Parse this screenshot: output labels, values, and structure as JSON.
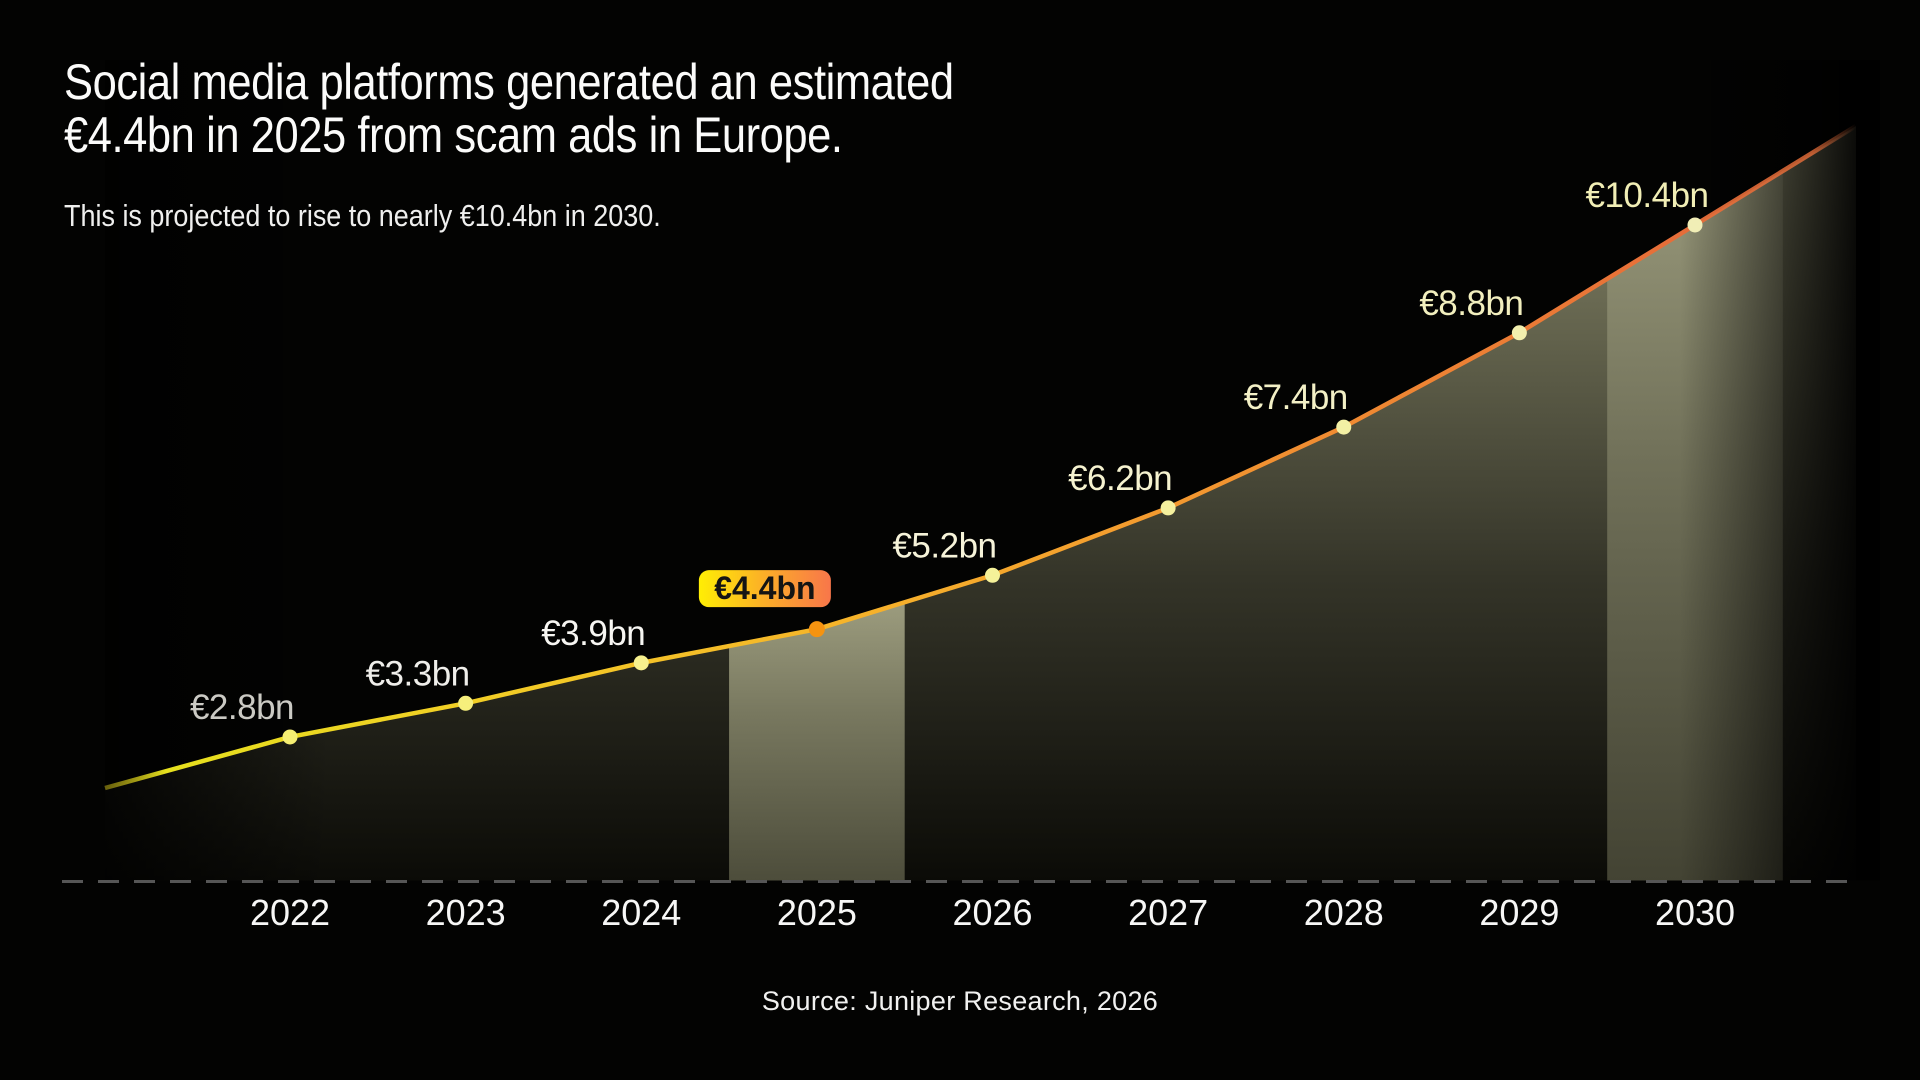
{
  "header": {
    "title_line1": "Social media platforms generated an estimated",
    "title_line2": "€4.4bn in 2025 from scam ads in Europe.",
    "subtitle": "This is projected to rise to nearly €10.4bn in 2030."
  },
  "footer": {
    "source": "Source: Juniper Research, 2026"
  },
  "chart_data": {
    "type": "area",
    "title": "Social media platforms generated an estimated €4.4bn in 2025 from scam ads in Europe.",
    "subtitle": "This is projected to rise to nearly €10.4bn in 2030.",
    "source": "Source: Juniper Research, 2026",
    "categories": [
      "2022",
      "2023",
      "2024",
      "2025",
      "2026",
      "2027",
      "2028",
      "2029",
      "2030"
    ],
    "values": [
      2.8,
      3.3,
      3.9,
      4.4,
      5.2,
      6.2,
      7.4,
      8.8,
      10.4
    ],
    "unit": "€bn",
    "y_range": [
      0,
      11
    ],
    "y_axis_visible": false,
    "grid": "none",
    "legend": "none",
    "points": [
      {
        "year": 2022,
        "value": 2.8,
        "label": "€2.8bn",
        "label_color": "#cbcac4",
        "dot_color": "#f5ee72",
        "highlighted": false
      },
      {
        "year": 2023,
        "value": 3.3,
        "label": "€3.3bn",
        "label_color": "#efeeea",
        "dot_color": "#f6ef7c",
        "highlighted": false
      },
      {
        "year": 2024,
        "value": 3.9,
        "label": "€3.9bn",
        "label_color": "#f7f6f2",
        "dot_color": "#f7f18e",
        "highlighted": false
      },
      {
        "year": 2025,
        "value": 4.4,
        "label": "€4.4bn",
        "label_color": "#141414",
        "dot_color": "#f59310",
        "highlighted": true
      },
      {
        "year": 2026,
        "value": 5.2,
        "label": "€5.2bn",
        "label_color": "#f6f3d9",
        "dot_color": "#f5f199",
        "highlighted": false
      },
      {
        "year": 2027,
        "value": 6.2,
        "label": "€6.2bn",
        "label_color": "#f5f2cf",
        "dot_color": "#f4f09e",
        "highlighted": false
      },
      {
        "year": 2028,
        "value": 7.4,
        "label": "€7.4bn",
        "label_color": "#f3f0c6",
        "dot_color": "#f3f0a4",
        "highlighted": false
      },
      {
        "year": 2029,
        "value": 8.8,
        "label": "€8.8bn",
        "label_color": "#f2efbe",
        "dot_color": "#f2efae",
        "highlighted": false
      },
      {
        "year": 2030,
        "value": 10.4,
        "label": "€10.4bn",
        "label_color": "#f1eeb5",
        "dot_color": "#f1eeb6",
        "highlighted": false
      }
    ],
    "highlight_bands_years": [
      [
        2024.5,
        2025.5
      ],
      [
        2029.5,
        2030.5
      ]
    ],
    "line_gradient": [
      "#e6e01e",
      "#f1cf25",
      "#f6b42a",
      "#f39a2f",
      "#ed8034",
      "#e66d39"
    ],
    "badge": {
      "label": "€4.4bn",
      "text_color": "#141414",
      "gradient": [
        "#ffee04",
        "#fcae28",
        "#f8764a"
      ]
    },
    "axis_line_color": "#565656",
    "x_tick_color": "#f7f7f6"
  }
}
